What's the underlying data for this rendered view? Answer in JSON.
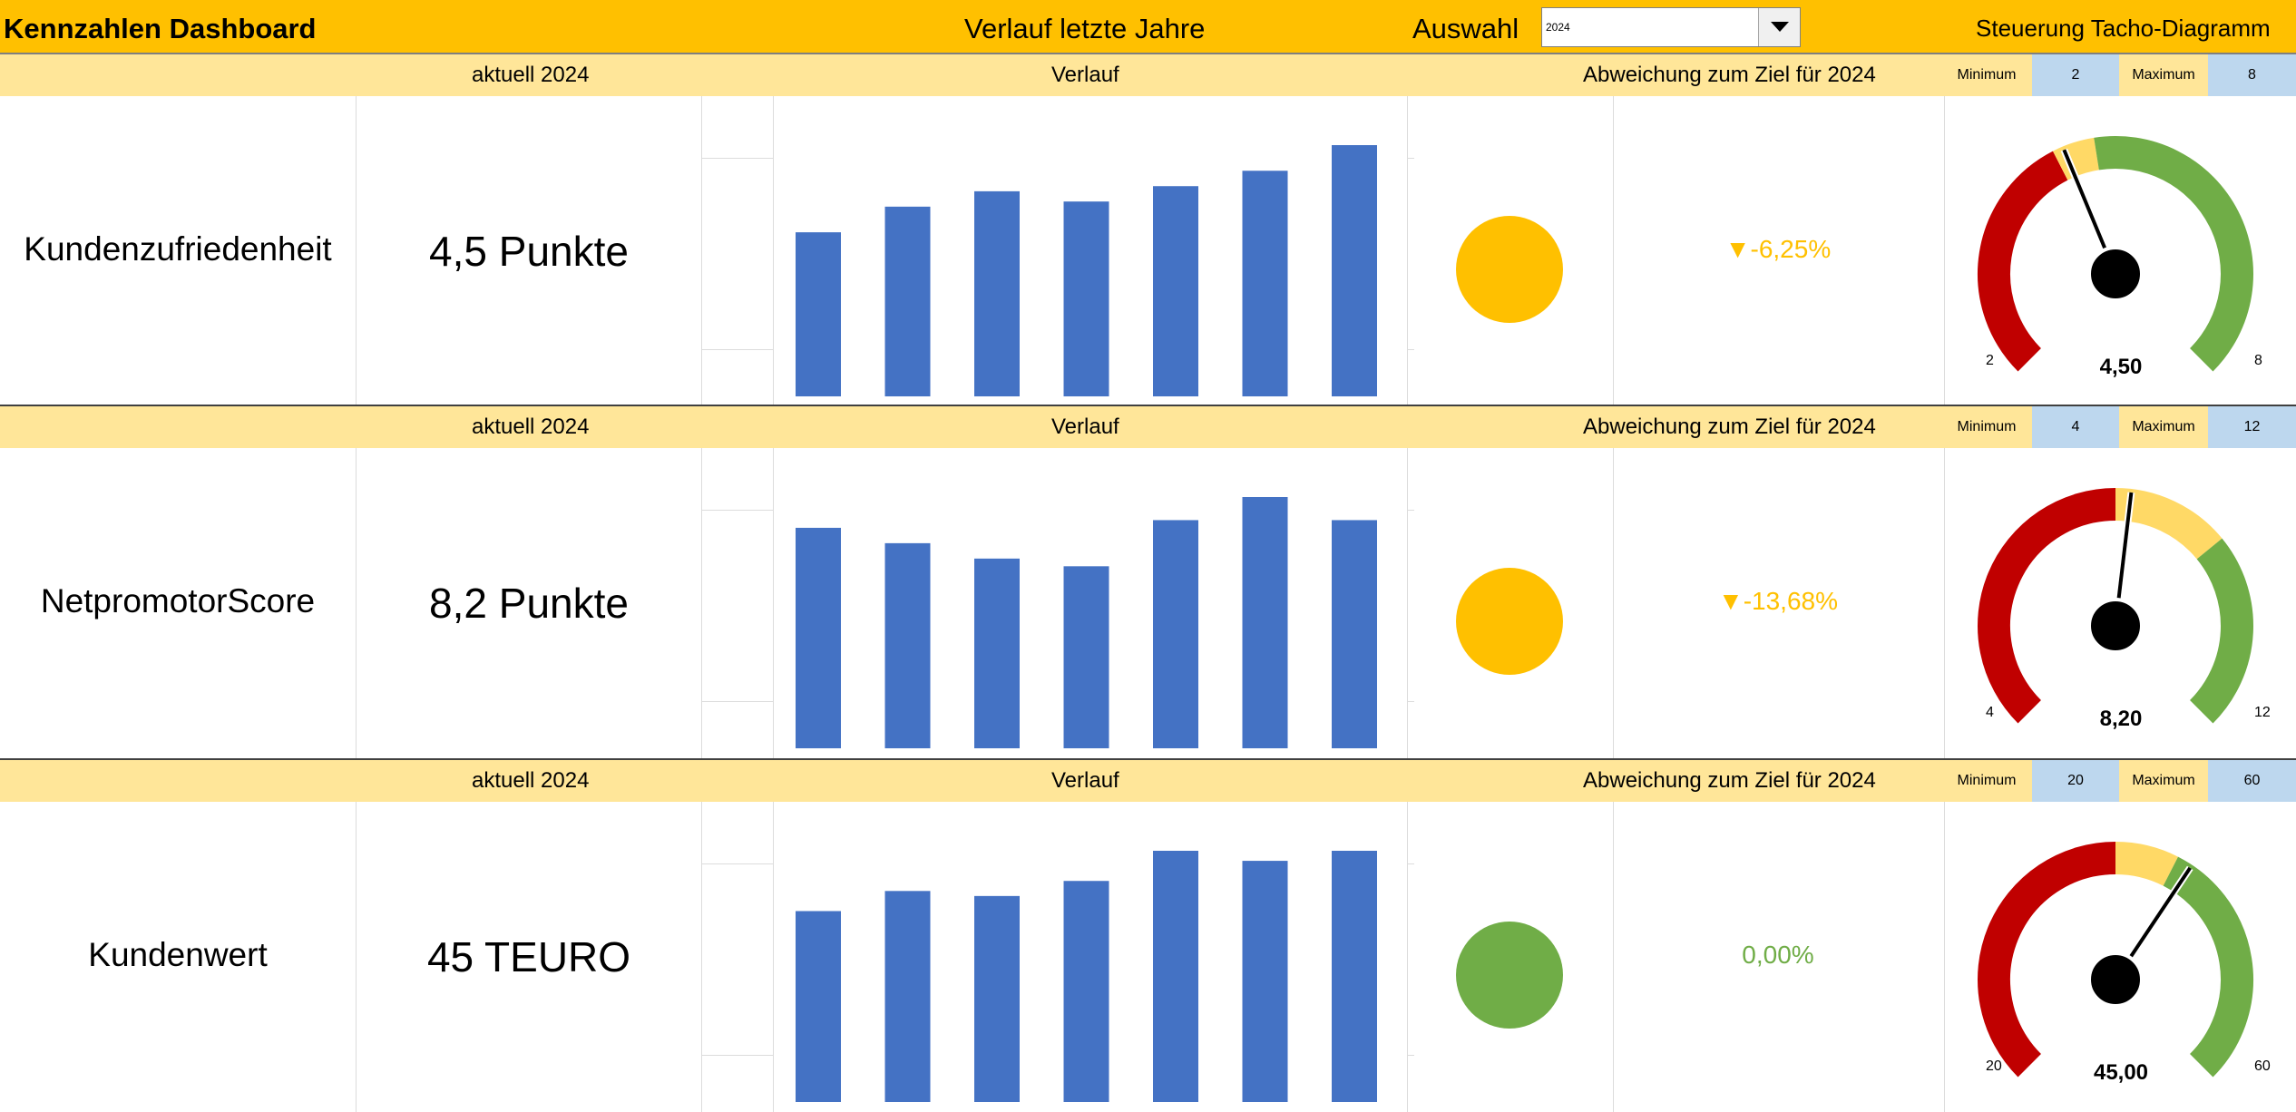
{
  "header": {
    "title": "Kennzahlen Dashboard",
    "center": "Verlauf letzte Jahre",
    "selection_label": "Auswahl",
    "selection_value": "2024",
    "control_title": "Steuerung Tacho-Diagramm"
  },
  "labels": {
    "current": "aktuell 2024",
    "trend": "Verlauf",
    "deviation": "Abweichung zum Ziel für 2024",
    "minimum": "Minimum",
    "maximum": "Maximum"
  },
  "colors": {
    "accent": "#FFC000",
    "subheader": "#FFE699",
    "bars": "#4472C4",
    "red": "#C00000",
    "yellow": "#FFD966",
    "green": "#70AD47",
    "status_yellow": "#FFC000",
    "status_green": "#70AD47"
  },
  "kpis": [
    {
      "name": "Kundenzufriedenheit",
      "value": "4,5 Punkte",
      "trend": [
        3.2,
        3.7,
        4.0,
        3.8,
        4.1,
        4.4,
        4.9
      ],
      "status": "yellow",
      "deviation": "▼-6,25%",
      "min": "2",
      "max": "8",
      "gauge": {
        "min": 2,
        "max": 8,
        "value": 4.5,
        "value_label": "4,50",
        "red_end": 4.4,
        "yellow_end": 4.8
      }
    },
    {
      "name": "NetpromotorScore",
      "value": "8,2 Punkte",
      "trend": [
        8.6,
        8.0,
        7.4,
        7.1,
        8.9,
        9.8,
        8.9
      ],
      "status": "yellow",
      "deviation": "▼-13,68%",
      "min": "4",
      "max": "12",
      "gauge": {
        "min": 4,
        "max": 12,
        "value": 8.2,
        "value_label": "8,20",
        "red_end": 8.0,
        "yellow_end": 9.5
      }
    },
    {
      "name": "Kundenwert",
      "value": "45 TEURO",
      "trend": [
        38,
        42,
        41,
        44,
        50,
        48,
        50
      ],
      "status": "green",
      "deviation": "0,00%",
      "min": "20",
      "max": "60",
      "gauge": {
        "min": 20,
        "max": 60,
        "value": 45,
        "value_label": "45,00",
        "red_end": 40,
        "yellow_end": 44
      }
    }
  ]
}
